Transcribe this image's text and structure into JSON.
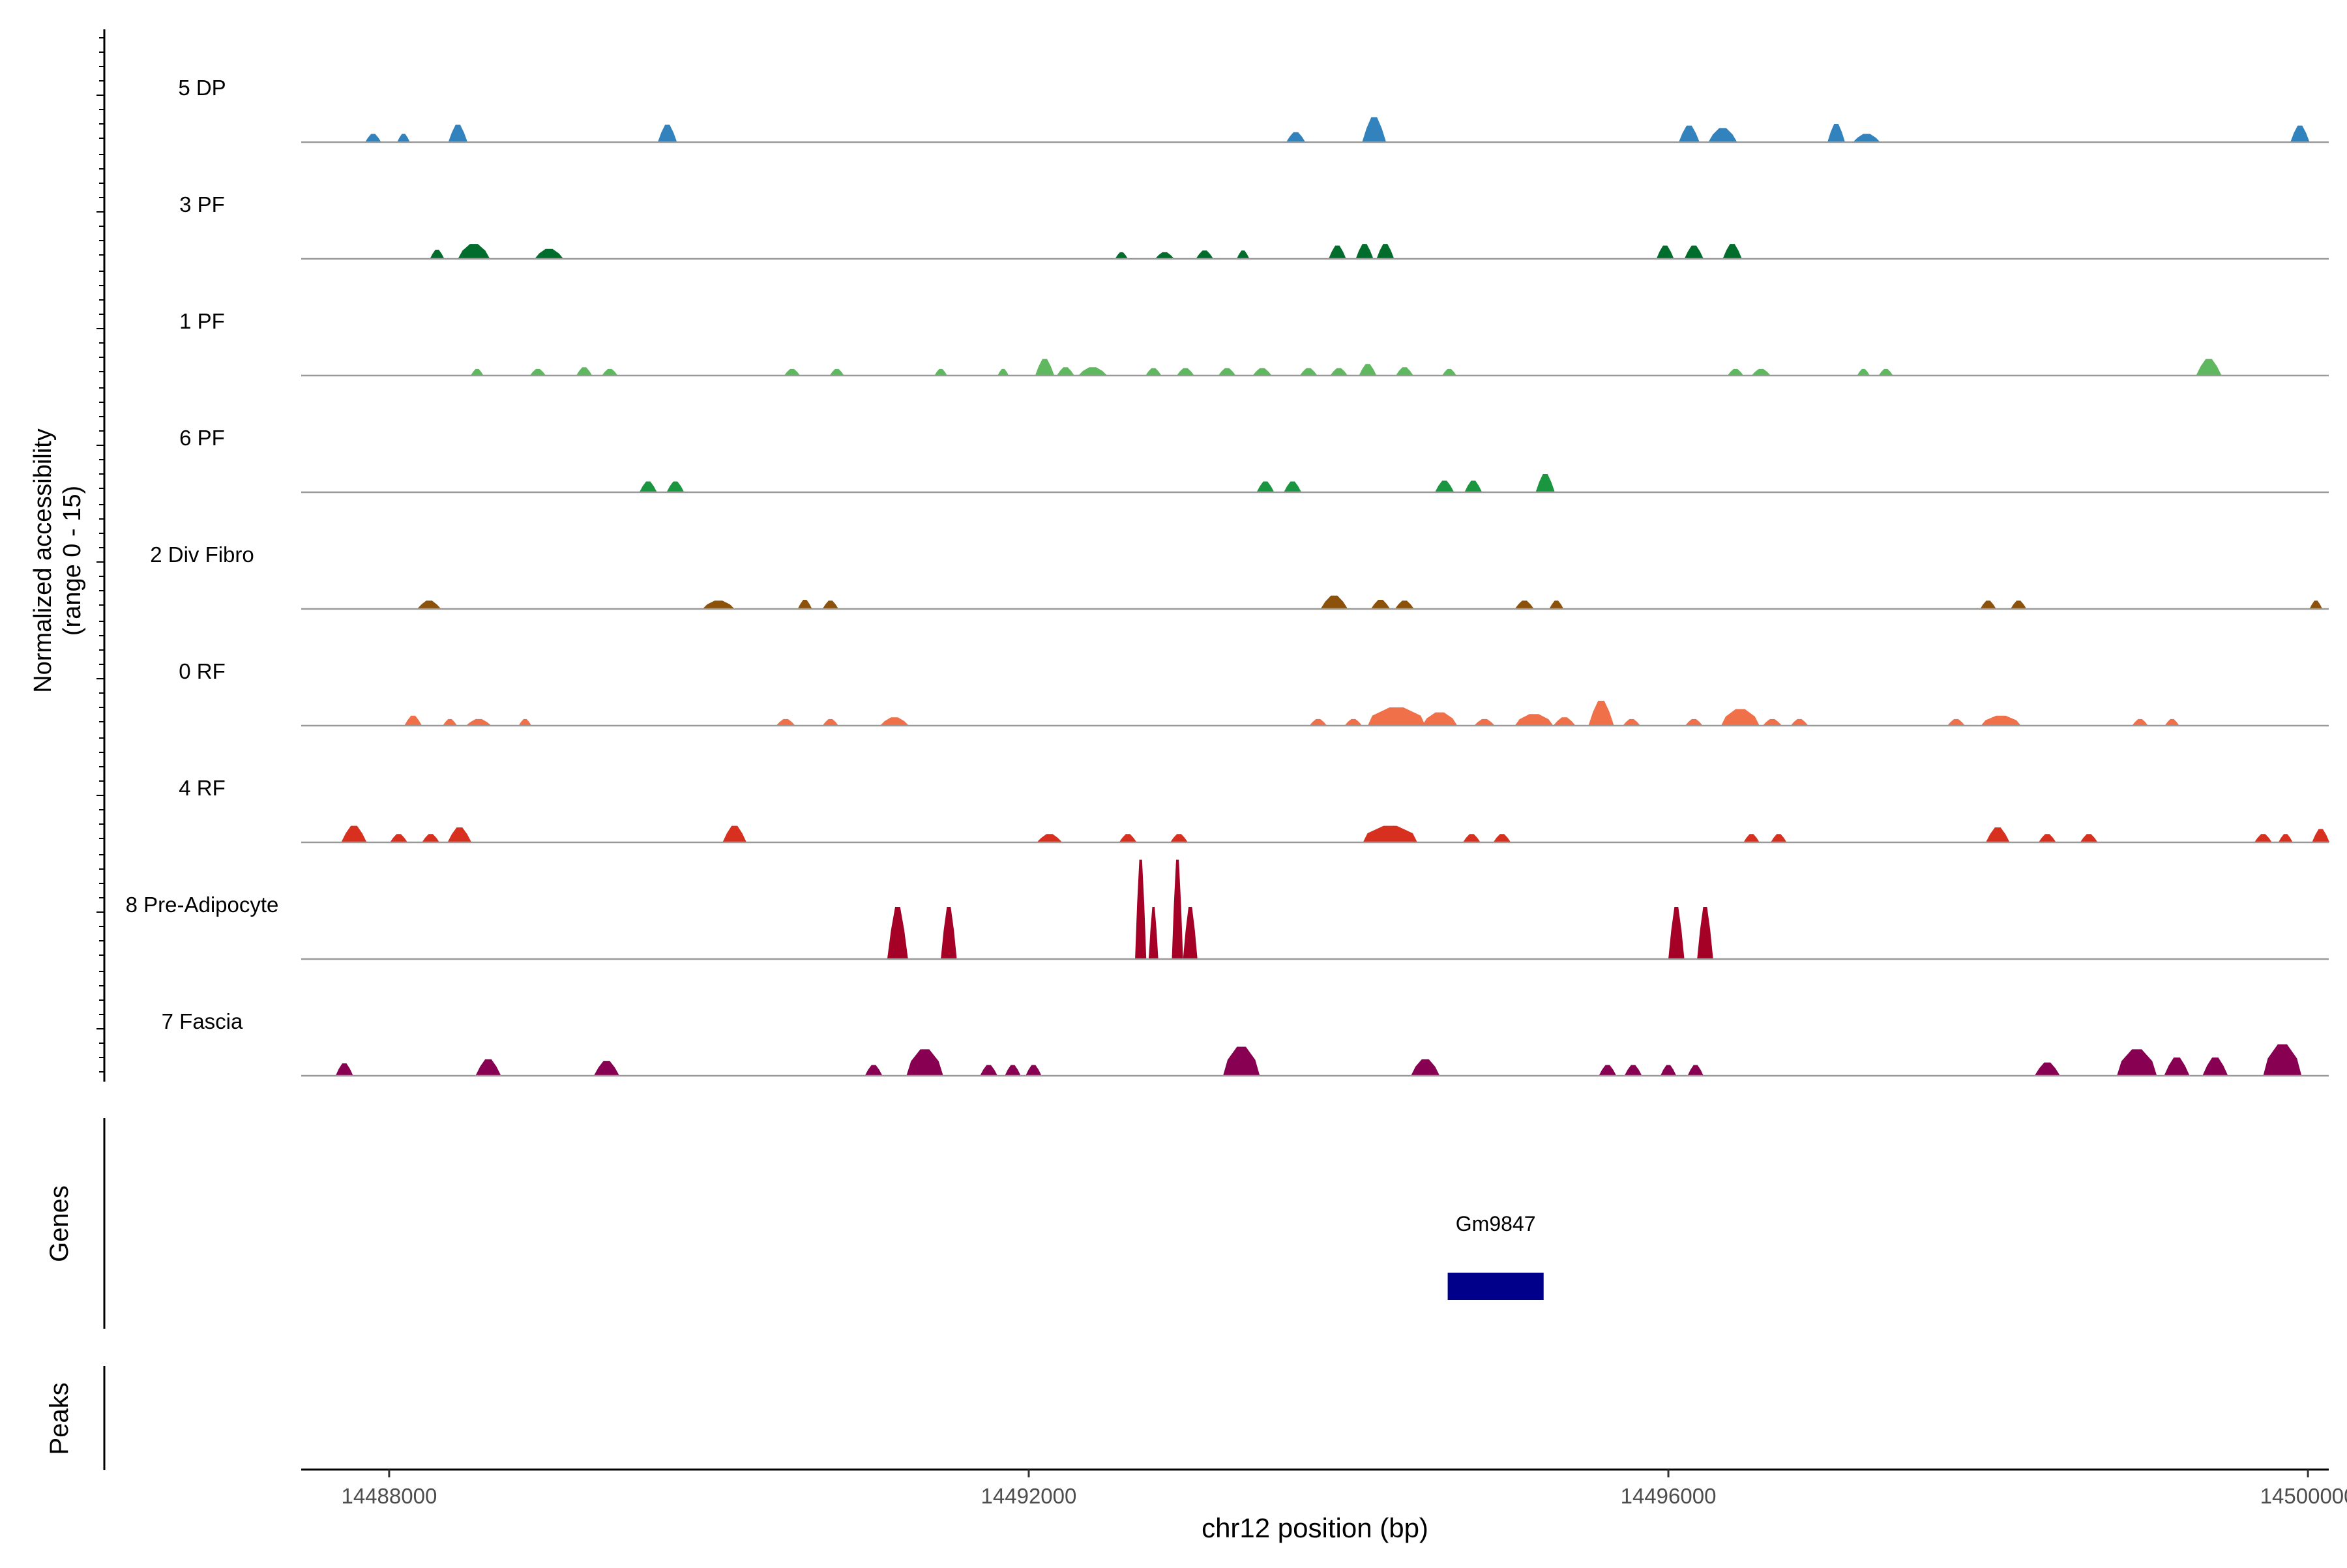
{
  "chart_data": {
    "type": "area",
    "title": "",
    "xlabel": "chr12 position (bp)",
    "ylabel_line1": "Normalized accessibility",
    "ylabel_line2": "(range 0 - 15)",
    "ylim": [
      0,
      15
    ],
    "xlim": [
      14487450,
      14500130
    ],
    "x_ticks": [
      14488000,
      14492000,
      14496000,
      14500000
    ],
    "x_tick_labels": [
      "14488000",
      "14492000",
      "14496000",
      "14500000"
    ],
    "genes_label": "Genes",
    "peaks_label": "Peaks",
    "tracks": [
      {
        "name": "5 DP",
        "color": "#3182bd",
        "peaks": [
          [
            14487900,
            100,
            1.0
          ],
          [
            14488090,
            80,
            1.0
          ],
          [
            14488430,
            120,
            2.1
          ],
          [
            14489740,
            120,
            2.1
          ],
          [
            14493670,
            120,
            1.2
          ],
          [
            14494160,
            150,
            3.0
          ],
          [
            14496130,
            130,
            2.0
          ],
          [
            14496340,
            180,
            1.7
          ],
          [
            14497050,
            110,
            2.2
          ],
          [
            14497240,
            170,
            1.0
          ],
          [
            14499950,
            120,
            2.0
          ]
        ]
      },
      {
        "name": "3 PF",
        "color": "#006d2c",
        "peaks": [
          [
            14488300,
            90,
            1.1
          ],
          [
            14488530,
            200,
            1.8
          ],
          [
            14489000,
            180,
            1.2
          ],
          [
            14492580,
            80,
            0.8
          ],
          [
            14492850,
            120,
            0.8
          ],
          [
            14493100,
            110,
            1.0
          ],
          [
            14493340,
            80,
            1.0
          ],
          [
            14493930,
            110,
            1.6
          ],
          [
            14494100,
            110,
            1.8
          ],
          [
            14494230,
            110,
            1.8
          ],
          [
            14495980,
            110,
            1.6
          ],
          [
            14496160,
            120,
            1.6
          ],
          [
            14496400,
            120,
            1.8
          ]
        ]
      },
      {
        "name": "1 PF",
        "color": "#5fb85f",
        "peaks": [
          [
            14488550,
            80,
            0.8
          ],
          [
            14488930,
            100,
            0.8
          ],
          [
            14489220,
            100,
            1.0
          ],
          [
            14489380,
            100,
            0.8
          ],
          [
            14490520,
            100,
            0.8
          ],
          [
            14490800,
            90,
            0.8
          ],
          [
            14491450,
            80,
            0.8
          ],
          [
            14491840,
            70,
            0.8
          ],
          [
            14492100,
            120,
            2.0
          ],
          [
            14492230,
            110,
            1.0
          ],
          [
            14492400,
            180,
            1.0
          ],
          [
            14492780,
            100,
            0.9
          ],
          [
            14492980,
            110,
            0.9
          ],
          [
            14493240,
            110,
            0.9
          ],
          [
            14493460,
            120,
            0.9
          ],
          [
            14493750,
            110,
            0.9
          ],
          [
            14493940,
            110,
            0.9
          ],
          [
            14494120,
            110,
            1.4
          ],
          [
            14494350,
            110,
            1.0
          ],
          [
            14494630,
            90,
            0.8
          ],
          [
            14496420,
            100,
            0.8
          ],
          [
            14496580,
            120,
            0.8
          ],
          [
            14497220,
            80,
            0.8
          ],
          [
            14497360,
            90,
            0.8
          ],
          [
            14499380,
            160,
            2.0
          ]
        ]
      },
      {
        "name": "6 PF",
        "color": "#1a9641",
        "peaks": [
          [
            14489620,
            110,
            1.3
          ],
          [
            14489790,
            110,
            1.3
          ],
          [
            14493480,
            110,
            1.3
          ],
          [
            14493650,
            110,
            1.3
          ],
          [
            14494600,
            120,
            1.4
          ],
          [
            14494780,
            110,
            1.4
          ],
          [
            14495230,
            120,
            2.2
          ]
        ]
      },
      {
        "name": "2 Div Fibro",
        "color": "#8c510a",
        "peaks": [
          [
            14488250,
            150,
            1.0
          ],
          [
            14490060,
            200,
            1.0
          ],
          [
            14490600,
            90,
            1.1
          ],
          [
            14490760,
            100,
            1.0
          ],
          [
            14493910,
            170,
            1.6
          ],
          [
            14494200,
            120,
            1.1
          ],
          [
            14494350,
            120,
            1.0
          ],
          [
            14495100,
            120,
            1.0
          ],
          [
            14495300,
            90,
            1.0
          ],
          [
            14498000,
            100,
            1.0
          ],
          [
            14498190,
            100,
            1.0
          ],
          [
            14500050,
            80,
            1.0
          ]
        ]
      },
      {
        "name": "0 RF",
        "color": "#f0704a",
        "peaks": [
          [
            14488150,
            110,
            1.2
          ],
          [
            14488380,
            90,
            0.8
          ],
          [
            14488560,
            160,
            0.8
          ],
          [
            14488850,
            80,
            0.8
          ],
          [
            14490480,
            120,
            0.8
          ],
          [
            14490760,
            100,
            0.8
          ],
          [
            14491160,
            180,
            1.0
          ],
          [
            14493810,
            110,
            0.8
          ],
          [
            14494030,
            110,
            0.8
          ],
          [
            14494300,
            360,
            2.2
          ],
          [
            14494570,
            220,
            1.6
          ],
          [
            14494850,
            130,
            0.8
          ],
          [
            14495160,
            240,
            1.4
          ],
          [
            14495350,
            140,
            1.0
          ],
          [
            14495580,
            160,
            3.0
          ],
          [
            14495770,
            110,
            0.8
          ],
          [
            14496160,
            110,
            0.8
          ],
          [
            14496450,
            240,
            2.0
          ],
          [
            14496650,
            120,
            0.8
          ],
          [
            14496820,
            110,
            0.8
          ],
          [
            14497800,
            110,
            0.8
          ],
          [
            14498080,
            250,
            1.2
          ],
          [
            14498950,
            100,
            0.8
          ],
          [
            14499150,
            90,
            0.8
          ]
        ]
      },
      {
        "name": "4 RF",
        "color": "#d7301f",
        "peaks": [
          [
            14487780,
            160,
            2.0
          ],
          [
            14488060,
            110,
            1.0
          ],
          [
            14488260,
            110,
            1.0
          ],
          [
            14488440,
            150,
            1.8
          ],
          [
            14490160,
            150,
            2.0
          ],
          [
            14492130,
            160,
            1.0
          ],
          [
            14492620,
            110,
            1.0
          ],
          [
            14492940,
            110,
            1.0
          ],
          [
            14494260,
            340,
            2.0
          ],
          [
            14494770,
            110,
            1.0
          ],
          [
            14494960,
            110,
            1.0
          ],
          [
            14496520,
            100,
            1.0
          ],
          [
            14496690,
            100,
            1.0
          ],
          [
            14498060,
            150,
            1.8
          ],
          [
            14498370,
            110,
            1.0
          ],
          [
            14498630,
            110,
            1.0
          ],
          [
            14499720,
            110,
            1.0
          ],
          [
            14499860,
            90,
            1.0
          ],
          [
            14500080,
            110,
            1.6
          ]
        ]
      },
      {
        "name": "8 Pre-Adipocyte",
        "color": "#a50026",
        "peaks": [
          [
            14491180,
            130,
            6.3
          ],
          [
            14491500,
            100,
            6.3
          ],
          [
            14492700,
            70,
            12.0
          ],
          [
            14492780,
            60,
            6.3
          ],
          [
            14492930,
            70,
            12.0
          ],
          [
            14493010,
            90,
            6.3
          ],
          [
            14496050,
            100,
            6.3
          ],
          [
            14496230,
            100,
            6.3
          ]
        ]
      },
      {
        "name": "7 Fascia",
        "color": "#870052",
        "peaks": [
          [
            14487720,
            110,
            1.5
          ],
          [
            14488620,
            160,
            2.0
          ],
          [
            14489360,
            160,
            1.8
          ],
          [
            14491030,
            110,
            1.3
          ],
          [
            14491350,
            230,
            3.2
          ],
          [
            14491750,
            110,
            1.3
          ],
          [
            14491900,
            100,
            1.3
          ],
          [
            14492030,
            100,
            1.3
          ],
          [
            14493330,
            230,
            3.5
          ],
          [
            14494480,
            180,
            2.0
          ],
          [
            14495620,
            110,
            1.3
          ],
          [
            14495780,
            110,
            1.3
          ],
          [
            14496000,
            100,
            1.3
          ],
          [
            14496170,
            100,
            1.3
          ],
          [
            14498370,
            160,
            1.6
          ],
          [
            14498930,
            250,
            3.2
          ],
          [
            14499180,
            160,
            2.2
          ],
          [
            14499420,
            160,
            2.2
          ],
          [
            14499840,
            240,
            3.8
          ]
        ]
      }
    ],
    "genes": [
      {
        "name": "Gm9847",
        "start": 14494620,
        "end": 14495220,
        "color": "#00008b"
      }
    ],
    "peaks_track": []
  }
}
